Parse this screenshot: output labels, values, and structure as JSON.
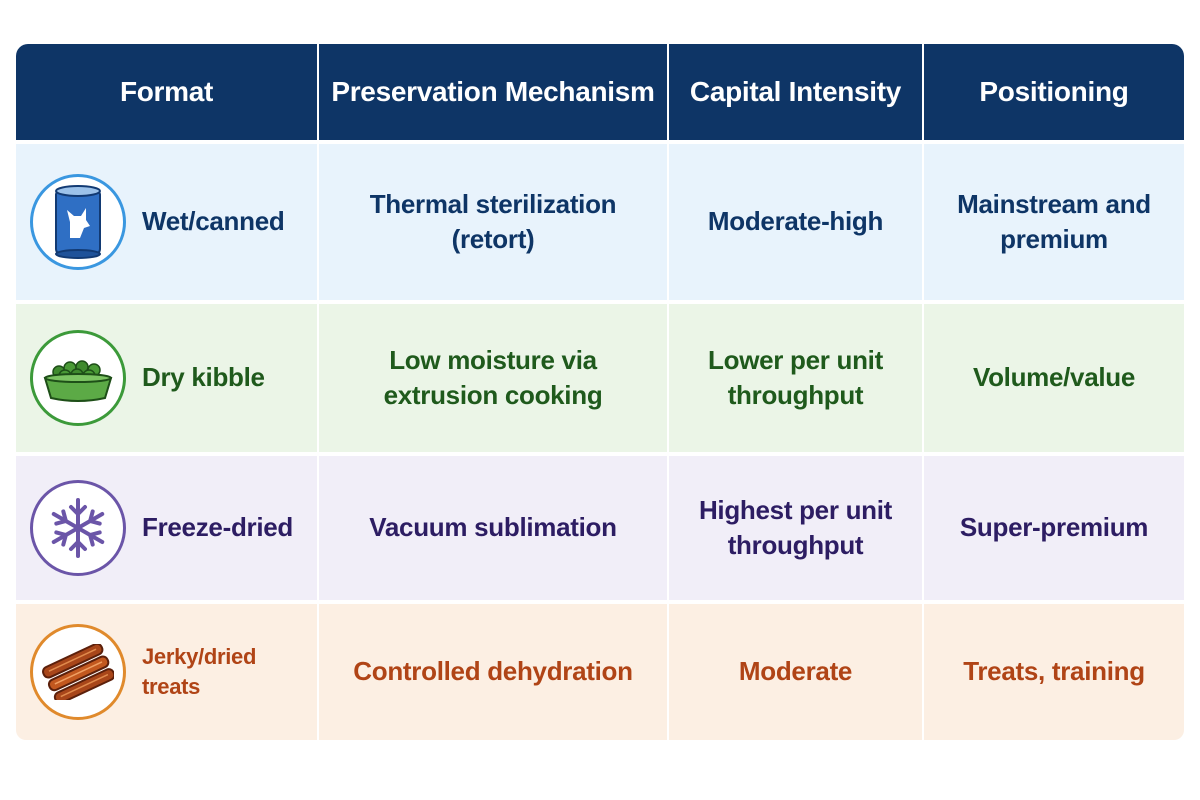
{
  "header": {
    "format": "Format",
    "preservation": "Preservation Mechanism",
    "capital": "Capital Intensity",
    "positioning": "Positioning"
  },
  "rows": [
    {
      "icon": "can-icon",
      "format": "Wet/canned",
      "preservation": "Thermal sterilization (retort)",
      "capital": "Moderate-high",
      "positioning": "Mainstream and premium",
      "color": "#0e3566"
    },
    {
      "icon": "kibble-bowl-icon",
      "format": "Dry kibble",
      "preservation": "Low moisture via extrusion cooking",
      "capital": "Lower per unit throughput",
      "positioning": "Volume/value",
      "color": "#1f5a1c"
    },
    {
      "icon": "snowflake-icon",
      "format": "Freeze-dried",
      "preservation": "Vacuum sublimation",
      "capital": "Highest per unit throughput",
      "positioning": "Super-premium",
      "color": "#2d1d63"
    },
    {
      "icon": "jerky-strips-icon",
      "format": "Jerky/dried treats",
      "preservation": "Controlled dehydration",
      "capital": "Moderate",
      "positioning": "Treats, training",
      "color": "#b04416"
    }
  ]
}
